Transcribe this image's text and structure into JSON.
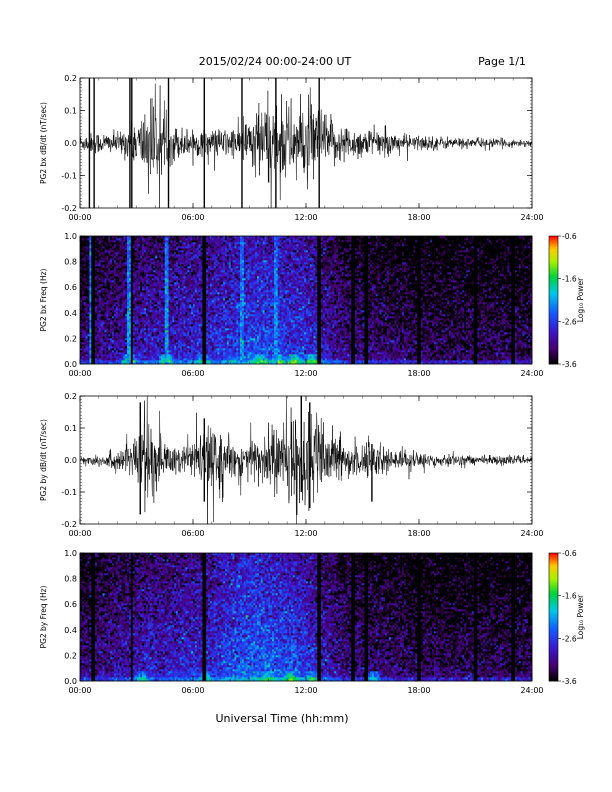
{
  "header": {
    "title": "2015/02/24  00:00-24:00 UT",
    "page": "Page 1/1"
  },
  "xlabel": "Universal Time (hh:mm)",
  "colorbar": {
    "label": "Log₁₀ Power",
    "ticks": [
      "-0.6",
      "-1.6",
      "-2.6",
      "-3.6"
    ]
  },
  "chart_data": [
    {
      "type": "line",
      "ylabel": "PG2 bx dB/dt (nT/sec)",
      "ylim": [
        -0.2,
        0.2
      ],
      "yticks": [
        "0.2",
        "0.1",
        "0.0",
        "-0.1",
        "-0.2"
      ],
      "xticks": [
        "00:00",
        "06:00",
        "12:00",
        "18:00",
        "24:00"
      ],
      "x_unit": "UT hours",
      "xlim": [
        0,
        24
      ],
      "envelope": {
        "x": [
          0,
          1,
          2,
          2.7,
          3.2,
          3.7,
          4.5,
          5.5,
          6.5,
          7.5,
          8.5,
          9.3,
          10.0,
          10.8,
          11.6,
          12.4,
          13.2,
          14.0,
          15.0,
          16.0,
          17.0,
          18.5,
          20.0,
          22.0,
          24.0
        ],
        "amplitude": [
          0.022,
          0.03,
          0.028,
          0.05,
          0.07,
          0.14,
          0.06,
          0.04,
          0.035,
          0.04,
          0.045,
          0.1,
          0.12,
          0.11,
          0.1,
          0.12,
          0.07,
          0.05,
          0.04,
          0.035,
          0.025,
          0.02,
          0.015,
          0.012,
          0.01
        ]
      },
      "spikes": [
        {
          "x": 0.5,
          "ymin": -0.2,
          "ymax": 0.2
        },
        {
          "x": 0.75,
          "ymin": -0.2,
          "ymax": 0.2
        },
        {
          "x": 2.65,
          "ymin": -0.2,
          "ymax": 0.2
        },
        {
          "x": 2.75,
          "ymin": -0.2,
          "ymax": 0.2
        },
        {
          "x": 4.7,
          "ymin": -0.2,
          "ymax": 0.2
        },
        {
          "x": 6.6,
          "ymin": -0.2,
          "ymax": 0.2
        },
        {
          "x": 8.6,
          "ymin": -0.2,
          "ymax": 0.2
        },
        {
          "x": 10.4,
          "ymin": -0.2,
          "ymax": 0.2
        },
        {
          "x": 12.7,
          "ymin": -0.2,
          "ymax": 0.2
        }
      ]
    },
    {
      "type": "heatmap",
      "ylabel": "PG2 bx Freq (Hz)",
      "ylim": [
        0.0,
        1.0
      ],
      "yticks": [
        "1.0",
        "0.8",
        "0.6",
        "0.4",
        "0.2",
        "0.0"
      ],
      "xticks": [
        "00:00",
        "06:00",
        "12:00",
        "18:00",
        "24:00"
      ],
      "xlim": [
        0,
        24
      ],
      "zlim": [
        -3.6,
        -0.6
      ],
      "zlabel": "Log₁₀ Power",
      "activity": {
        "x": [
          0,
          2,
          3,
          5,
          7,
          8,
          9,
          10,
          11,
          12,
          13,
          14,
          16,
          18,
          20,
          24
        ],
        "level": [
          -3.2,
          -3.0,
          -2.9,
          -2.8,
          -2.7,
          -2.6,
          -2.5,
          -2.5,
          -2.6,
          -2.6,
          -2.9,
          -3.1,
          -3.2,
          -3.3,
          -3.3,
          -3.3
        ]
      },
      "bright_streaks": [
        0.6,
        2.6,
        4.6,
        8.6,
        10.4
      ],
      "dark_gaps": [
        0.7,
        2.75,
        6.6,
        12.7,
        14.5,
        15.2,
        18.0,
        21.0,
        23.0
      ],
      "low_freq_boost": [
        {
          "x": 2.6,
          "level": -1.8
        },
        {
          "x": 4.6,
          "level": -1.9
        },
        {
          "x": 6.5,
          "level": -2.2
        },
        {
          "x": 9.5,
          "level": -2.0
        },
        {
          "x": 10.5,
          "level": -1.9
        },
        {
          "x": 11.4,
          "level": -1.8
        },
        {
          "x": 12.3,
          "level": -1.9
        }
      ]
    },
    {
      "type": "line",
      "ylabel": "PG2 by dB/dt (nT/sec)",
      "ylim": [
        -0.2,
        0.2
      ],
      "yticks": [
        "0.2",
        "0.1",
        "0.0",
        "-0.1",
        "-0.2"
      ],
      "xticks": [
        "00:00",
        "06:00",
        "12:00",
        "18:00",
        "24:00"
      ],
      "xlim": [
        0,
        24
      ],
      "envelope": {
        "x": [
          0,
          1,
          2,
          2.8,
          3.4,
          4.0,
          4.6,
          5.5,
          6.0,
          6.7,
          7.5,
          8.5,
          9.3,
          10.0,
          10.8,
          11.5,
          12.0,
          12.6,
          13.3,
          14.0,
          15.0,
          16.0,
          17.0,
          18.5,
          20.0,
          22.0,
          24.0
        ],
        "amplitude": [
          0.012,
          0.018,
          0.03,
          0.05,
          0.14,
          0.08,
          0.05,
          0.04,
          0.045,
          0.1,
          0.06,
          0.05,
          0.07,
          0.09,
          0.11,
          0.12,
          0.15,
          0.11,
          0.07,
          0.05,
          0.06,
          0.04,
          0.025,
          0.02,
          0.015,
          0.012,
          0.01
        ]
      },
      "spikes": [
        {
          "x": 3.2,
          "ymin": -0.17,
          "ymax": 0.18
        },
        {
          "x": 6.6,
          "ymin": -0.13,
          "ymax": 0.13
        },
        {
          "x": 11.75,
          "ymin": -0.1,
          "ymax": 0.2
        },
        {
          "x": 12.2,
          "ymin": -0.15,
          "ymax": 0.18
        },
        {
          "x": 15.5,
          "ymin": -0.13,
          "ymax": 0.05
        }
      ]
    },
    {
      "type": "heatmap",
      "ylabel": "PG2 by Freq (Hz)",
      "ylim": [
        0.0,
        1.0
      ],
      "yticks": [
        "1.0",
        "0.8",
        "0.6",
        "0.4",
        "0.2",
        "0.0"
      ],
      "xticks": [
        "00:00",
        "06:00",
        "12:00",
        "18:00",
        "24:00"
      ],
      "xlim": [
        0,
        24
      ],
      "zlim": [
        -3.6,
        -0.6
      ],
      "zlabel": "Log₁₀ Power",
      "activity": {
        "x": [
          0,
          2,
          3,
          5,
          7,
          8,
          9,
          10,
          11,
          12,
          13,
          14,
          16,
          18,
          20,
          24
        ],
        "level": [
          -3.2,
          -3.0,
          -2.9,
          -2.8,
          -2.7,
          -2.5,
          -2.4,
          -2.4,
          -2.5,
          -2.6,
          -2.9,
          -3.1,
          -3.2,
          -3.3,
          -3.3,
          -3.3
        ]
      },
      "bright_streaks": [],
      "dark_gaps": [
        0.7,
        2.75,
        6.6,
        12.7,
        14.5,
        15.2,
        18.0,
        21.0,
        23.0
      ],
      "low_freq_boost": [
        {
          "x": 3.3,
          "level": -2.3
        },
        {
          "x": 6.6,
          "level": -2.3
        },
        {
          "x": 10.0,
          "level": -2.1
        },
        {
          "x": 11.2,
          "level": -2.1
        },
        {
          "x": 12.3,
          "level": -2.2
        },
        {
          "x": 15.6,
          "level": -2.4
        }
      ]
    }
  ]
}
